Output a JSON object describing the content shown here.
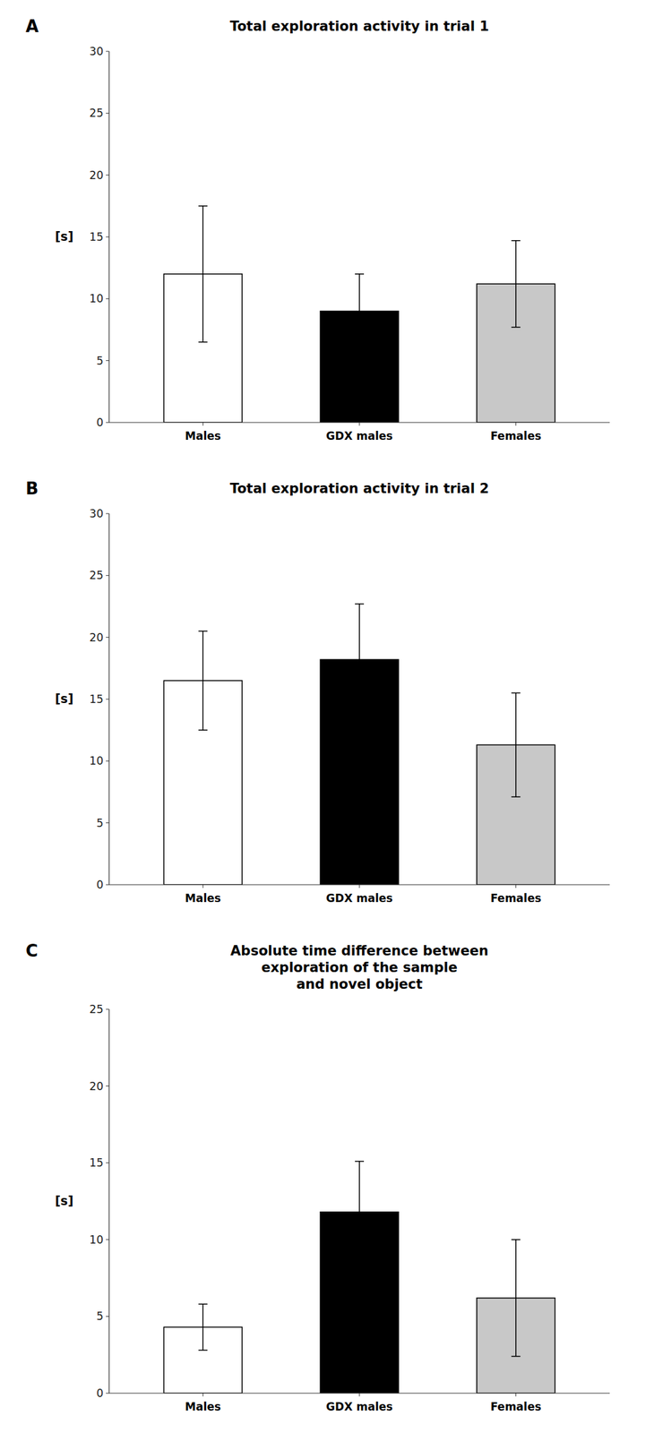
{
  "chart_data": [
    {
      "type": "bar",
      "title": "Total exploration activity in trial 1",
      "annotations": [
        "A"
      ],
      "ylabel": "[s]",
      "categories": [
        "Males",
        "GDX males",
        "Females"
      ],
      "values": [
        12.0,
        9.0,
        11.2
      ],
      "errors": [
        5.5,
        3.0,
        3.5
      ],
      "colors": [
        "#ffffff",
        "#000000",
        "#c8c8c8"
      ],
      "ylim": [
        0,
        30
      ],
      "yticks": [
        0,
        5,
        10,
        15,
        20,
        25,
        30
      ],
      "grid": false
    },
    {
      "type": "bar",
      "title": "Total exploration activity in trial 2",
      "annotations": [
        "B"
      ],
      "ylabel": "[s]",
      "categories": [
        "Males",
        "GDX males",
        "Females"
      ],
      "values": [
        16.5,
        18.2,
        11.3
      ],
      "errors": [
        4.0,
        4.5,
        4.2
      ],
      "colors": [
        "#ffffff",
        "#000000",
        "#c8c8c8"
      ],
      "ylim": [
        0,
        30
      ],
      "yticks": [
        0,
        5,
        10,
        15,
        20,
        25,
        30
      ],
      "grid": false
    },
    {
      "type": "bar",
      "title": "Absolute time difference between\nexploration of the sample\nand novel object",
      "annotations": [
        "C"
      ],
      "ylabel": "[s]",
      "categories": [
        "Males",
        "GDX males",
        "Females"
      ],
      "values": [
        4.3,
        11.8,
        6.2
      ],
      "errors": [
        1.5,
        3.3,
        3.8
      ],
      "colors": [
        "#ffffff",
        "#000000",
        "#c8c8c8"
      ],
      "ylim": [
        0,
        25
      ],
      "yticks": [
        0,
        5,
        10,
        15,
        20,
        25
      ],
      "grid": false
    }
  ]
}
